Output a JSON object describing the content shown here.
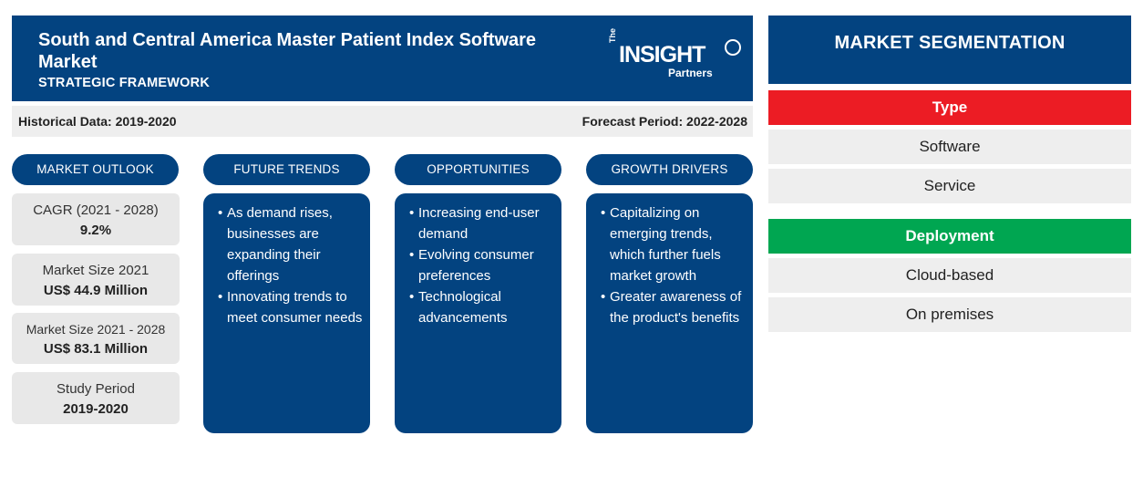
{
  "header": {
    "title": "South and Central America Master Patient Index Software Market",
    "subtitle": "STRATEGIC FRAMEWORK",
    "logo": {
      "the": "The",
      "insight": "INSIGHT",
      "partners": "Partners"
    }
  },
  "periods": {
    "historical": "Historical Data: 2019-2020",
    "forecast": "Forecast Period: 2022-2028"
  },
  "columns": {
    "outlook": "MARKET OUTLOOK",
    "trends": "FUTURE TRENDS",
    "opportunities": "OPPORTUNITIES",
    "drivers": "GROWTH DRIVERS"
  },
  "stats": [
    {
      "label": "CAGR (2021 - 2028)",
      "value": "9.2%"
    },
    {
      "label": "Market Size 2021",
      "value": "US$ 44.9 Million"
    },
    {
      "label": "Market Size 2021 - 2028",
      "value": "US$ 83.1 Million"
    },
    {
      "label": "Study Period",
      "value": "2019-2020"
    }
  ],
  "trends": [
    "As demand rises, businesses are expanding their offerings",
    "Innovating trends to meet consumer needs"
  ],
  "opportunities": [
    "Increasing end-user demand",
    "Evolving consumer preferences",
    "Technological advancements"
  ],
  "drivers": [
    "Capitalizing on emerging trends, which further fuels market growth",
    "Greater awareness of the product's benefits"
  ],
  "segmentation": {
    "title": "MARKET SEGMENTATION",
    "type": {
      "label": "Type",
      "color": "#ec1c24",
      "items": [
        "Software",
        "Service"
      ]
    },
    "deployment": {
      "label": "Deployment",
      "color": "#00a651",
      "items": [
        "Cloud-based",
        "On premises"
      ]
    }
  },
  "colors": {
    "primary": "#034380",
    "panel": "#e8e8e8"
  }
}
